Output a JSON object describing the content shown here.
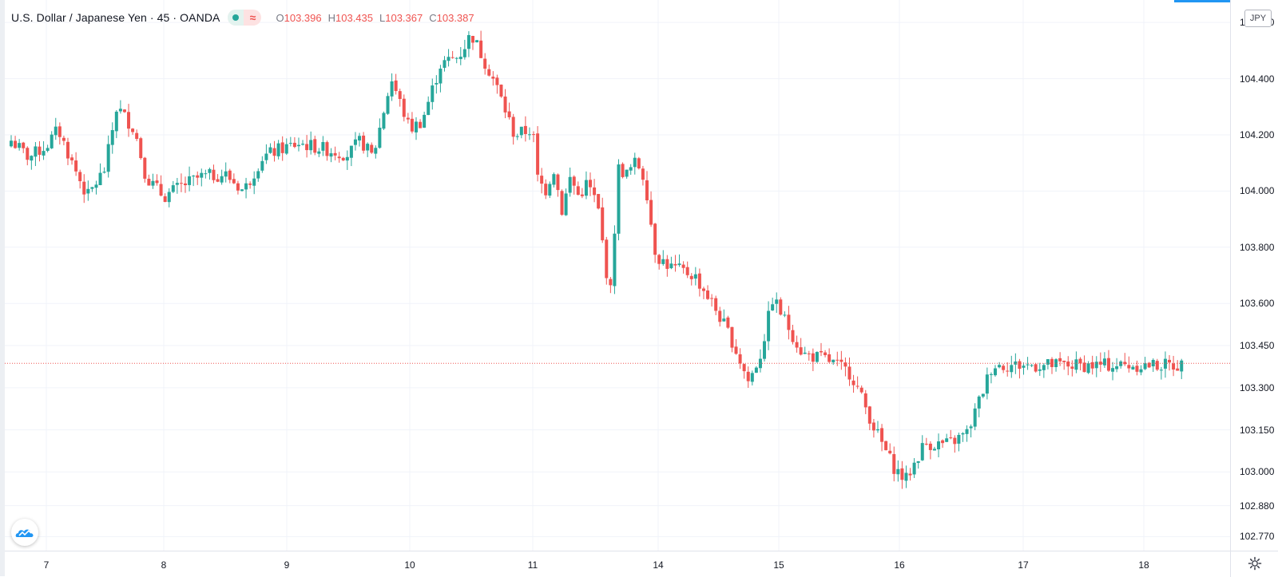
{
  "header": {
    "symbol": "U.S. Dollar / Japanese Yen · 45 · OANDA",
    "currency": "JPY",
    "ohlc": [
      {
        "key": "O",
        "value": "103.396"
      },
      {
        "key": "H",
        "value": "103.435"
      },
      {
        "key": "L",
        "value": "103.367"
      },
      {
        "key": "C",
        "value": "103.387"
      }
    ]
  },
  "colors": {
    "up": "#26a69a",
    "down": "#ef5350",
    "grid": "#f0f3fa",
    "price_line": "#ef5350",
    "accent": "#2196f3"
  },
  "icons": {
    "status": "green-dot-icon",
    "replay": "approx-icon",
    "logo": "tradingview-cloud-icon",
    "settings": "gear-icon"
  },
  "chart_data": {
    "type": "candlestick",
    "ylim": [
      102.72,
      104.68
    ],
    "y_ticks": [
      "104.600",
      "104.400",
      "104.200",
      "104.000",
      "103.800",
      "103.600",
      "103.450",
      "103.300",
      "103.150",
      "103.000",
      "102.880",
      "102.770"
    ],
    "x_ticks": [
      {
        "label": "7",
        "day": 7
      },
      {
        "label": "8",
        "day": 8
      },
      {
        "label": "9",
        "day": 9
      },
      {
        "label": "10",
        "day": 10
      },
      {
        "label": "11",
        "day": 11
      },
      {
        "label": "14",
        "day": 14
      },
      {
        "label": "15",
        "day": 15
      },
      {
        "label": "16",
        "day": 16
      },
      {
        "label": "17",
        "day": 17
      },
      {
        "label": "18",
        "day": 18
      }
    ],
    "last_price": 103.387,
    "path_points": [
      [
        6.6,
        103.98
      ],
      [
        6.7,
        104.18
      ],
      [
        6.85,
        104.12
      ],
      [
        7.0,
        104.16
      ],
      [
        7.1,
        104.22
      ],
      [
        7.22,
        104.1
      ],
      [
        7.35,
        103.98
      ],
      [
        7.5,
        104.08
      ],
      [
        7.6,
        104.3
      ],
      [
        7.75,
        104.22
      ],
      [
        7.85,
        104.05
      ],
      [
        8.0,
        103.98
      ],
      [
        8.15,
        104.02
      ],
      [
        8.3,
        104.05
      ],
      [
        8.5,
        104.06
      ],
      [
        8.65,
        104.0
      ],
      [
        8.8,
        104.12
      ],
      [
        8.95,
        104.15
      ],
      [
        9.1,
        104.17
      ],
      [
        9.3,
        104.15
      ],
      [
        9.5,
        104.13
      ],
      [
        9.6,
        104.18
      ],
      [
        9.7,
        104.12
      ],
      [
        9.85,
        104.4
      ],
      [
        10.0,
        104.22
      ],
      [
        10.1,
        104.25
      ],
      [
        10.25,
        104.45
      ],
      [
        10.4,
        104.48
      ],
      [
        10.5,
        104.56
      ],
      [
        10.7,
        104.38
      ],
      [
        10.85,
        104.2
      ],
      [
        11.0,
        104.22
      ],
      [
        11.1,
        104.05
      ],
      [
        11.3,
        104.0
      ],
      [
        11.5,
        104.08
      ],
      [
        11.7,
        103.93
      ],
      [
        11.9,
        104.05
      ],
      [
        12.1,
        103.98
      ],
      [
        12.3,
        104.03
      ],
      [
        12.55,
        103.95
      ],
      [
        12.7,
        103.78
      ],
      [
        12.85,
        103.62
      ],
      [
        13.05,
        104.08
      ],
      [
        13.25,
        104.06
      ],
      [
        13.45,
        104.1
      ],
      [
        13.6,
        104.08
      ],
      [
        13.75,
        103.98
      ],
      [
        13.9,
        103.8
      ],
      [
        14.1,
        103.73
      ],
      [
        14.3,
        103.7
      ],
      [
        14.45,
        103.6
      ],
      [
        14.6,
        103.48
      ],
      [
        14.75,
        103.32
      ],
      [
        14.85,
        103.42
      ],
      [
        14.95,
        103.62
      ],
      [
        15.1,
        103.5
      ],
      [
        15.2,
        103.42
      ],
      [
        15.4,
        103.4
      ],
      [
        15.6,
        103.35
      ],
      [
        15.8,
        103.15
      ],
      [
        15.95,
        103.02
      ],
      [
        16.05,
        102.97
      ],
      [
        16.2,
        103.1
      ],
      [
        16.4,
        103.1
      ],
      [
        16.55,
        103.14
      ],
      [
        16.7,
        103.32
      ],
      [
        16.75,
        103.38
      ]
    ]
  }
}
